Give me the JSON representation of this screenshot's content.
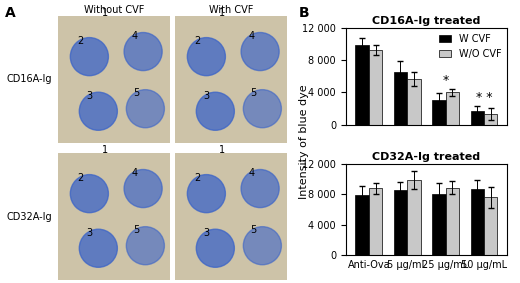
{
  "panel_labels": [
    "A",
    "B"
  ],
  "photos": {
    "columns": [
      "Without CVF",
      "With CVF"
    ],
    "rows": [
      "CD16A-Ig",
      "CD32A-Ig"
    ],
    "site_labels": [
      "1",
      "2",
      "3",
      "4",
      "5"
    ]
  },
  "ylabel": "Intensity of blue dye",
  "chart_data": [
    {
      "type": "bar",
      "title": "CD16A-Ig treated",
      "categories": [
        null,
        null,
        null,
        null
      ],
      "series": [
        {
          "name": "W CVF",
          "color": "#000000",
          "values": [
            9900,
            6600,
            3000,
            1700
          ],
          "errors": [
            900,
            1300,
            900,
            600
          ]
        },
        {
          "name": "W/O CVF",
          "color": "#c8c8c8",
          "values": [
            9300,
            5700,
            4000,
            1300
          ],
          "errors": [
            600,
            900,
            400,
            700
          ]
        }
      ],
      "ylim": [
        0,
        12000
      ],
      "yticks": [
        0,
        {
          "value": 4000,
          "label": "4 000"
        },
        {
          "value": 8000,
          "label": "8 000"
        },
        {
          "value": 12000,
          "label": "12 000"
        }
      ],
      "legend": "upper right",
      "tick_labels": "y",
      "annotations": [
        {
          "text": "*",
          "x": 2,
          "y": 4700
        },
        {
          "text": "* *",
          "x": 3,
          "y": 2500
        }
      ]
    },
    {
      "type": "bar",
      "title": "CD32A-Ig treated",
      "categories": [
        "Anti-Ova",
        "5 µg/mL",
        "25 µg/mL",
        "50 µg/mL"
      ],
      "series": [
        {
          "name": "W CVF",
          "color": "#000000",
          "values": [
            7900,
            8600,
            8100,
            8700
          ],
          "errors": [
            1200,
            1000,
            1400,
            1200
          ]
        },
        {
          "name": "W/O CVF",
          "color": "#c8c8c8",
          "values": [
            8800,
            9900,
            8900,
            7600
          ],
          "errors": [
            700,
            1200,
            900,
            1400
          ]
        }
      ],
      "ylim": [
        0,
        12000
      ],
      "yticks": [
        0,
        {
          "value": 4000,
          "label": "4 000"
        },
        {
          "value": 8000,
          "label": "8 000"
        },
        {
          "value": 12000,
          "label": "12 000"
        }
      ]
    }
  ]
}
